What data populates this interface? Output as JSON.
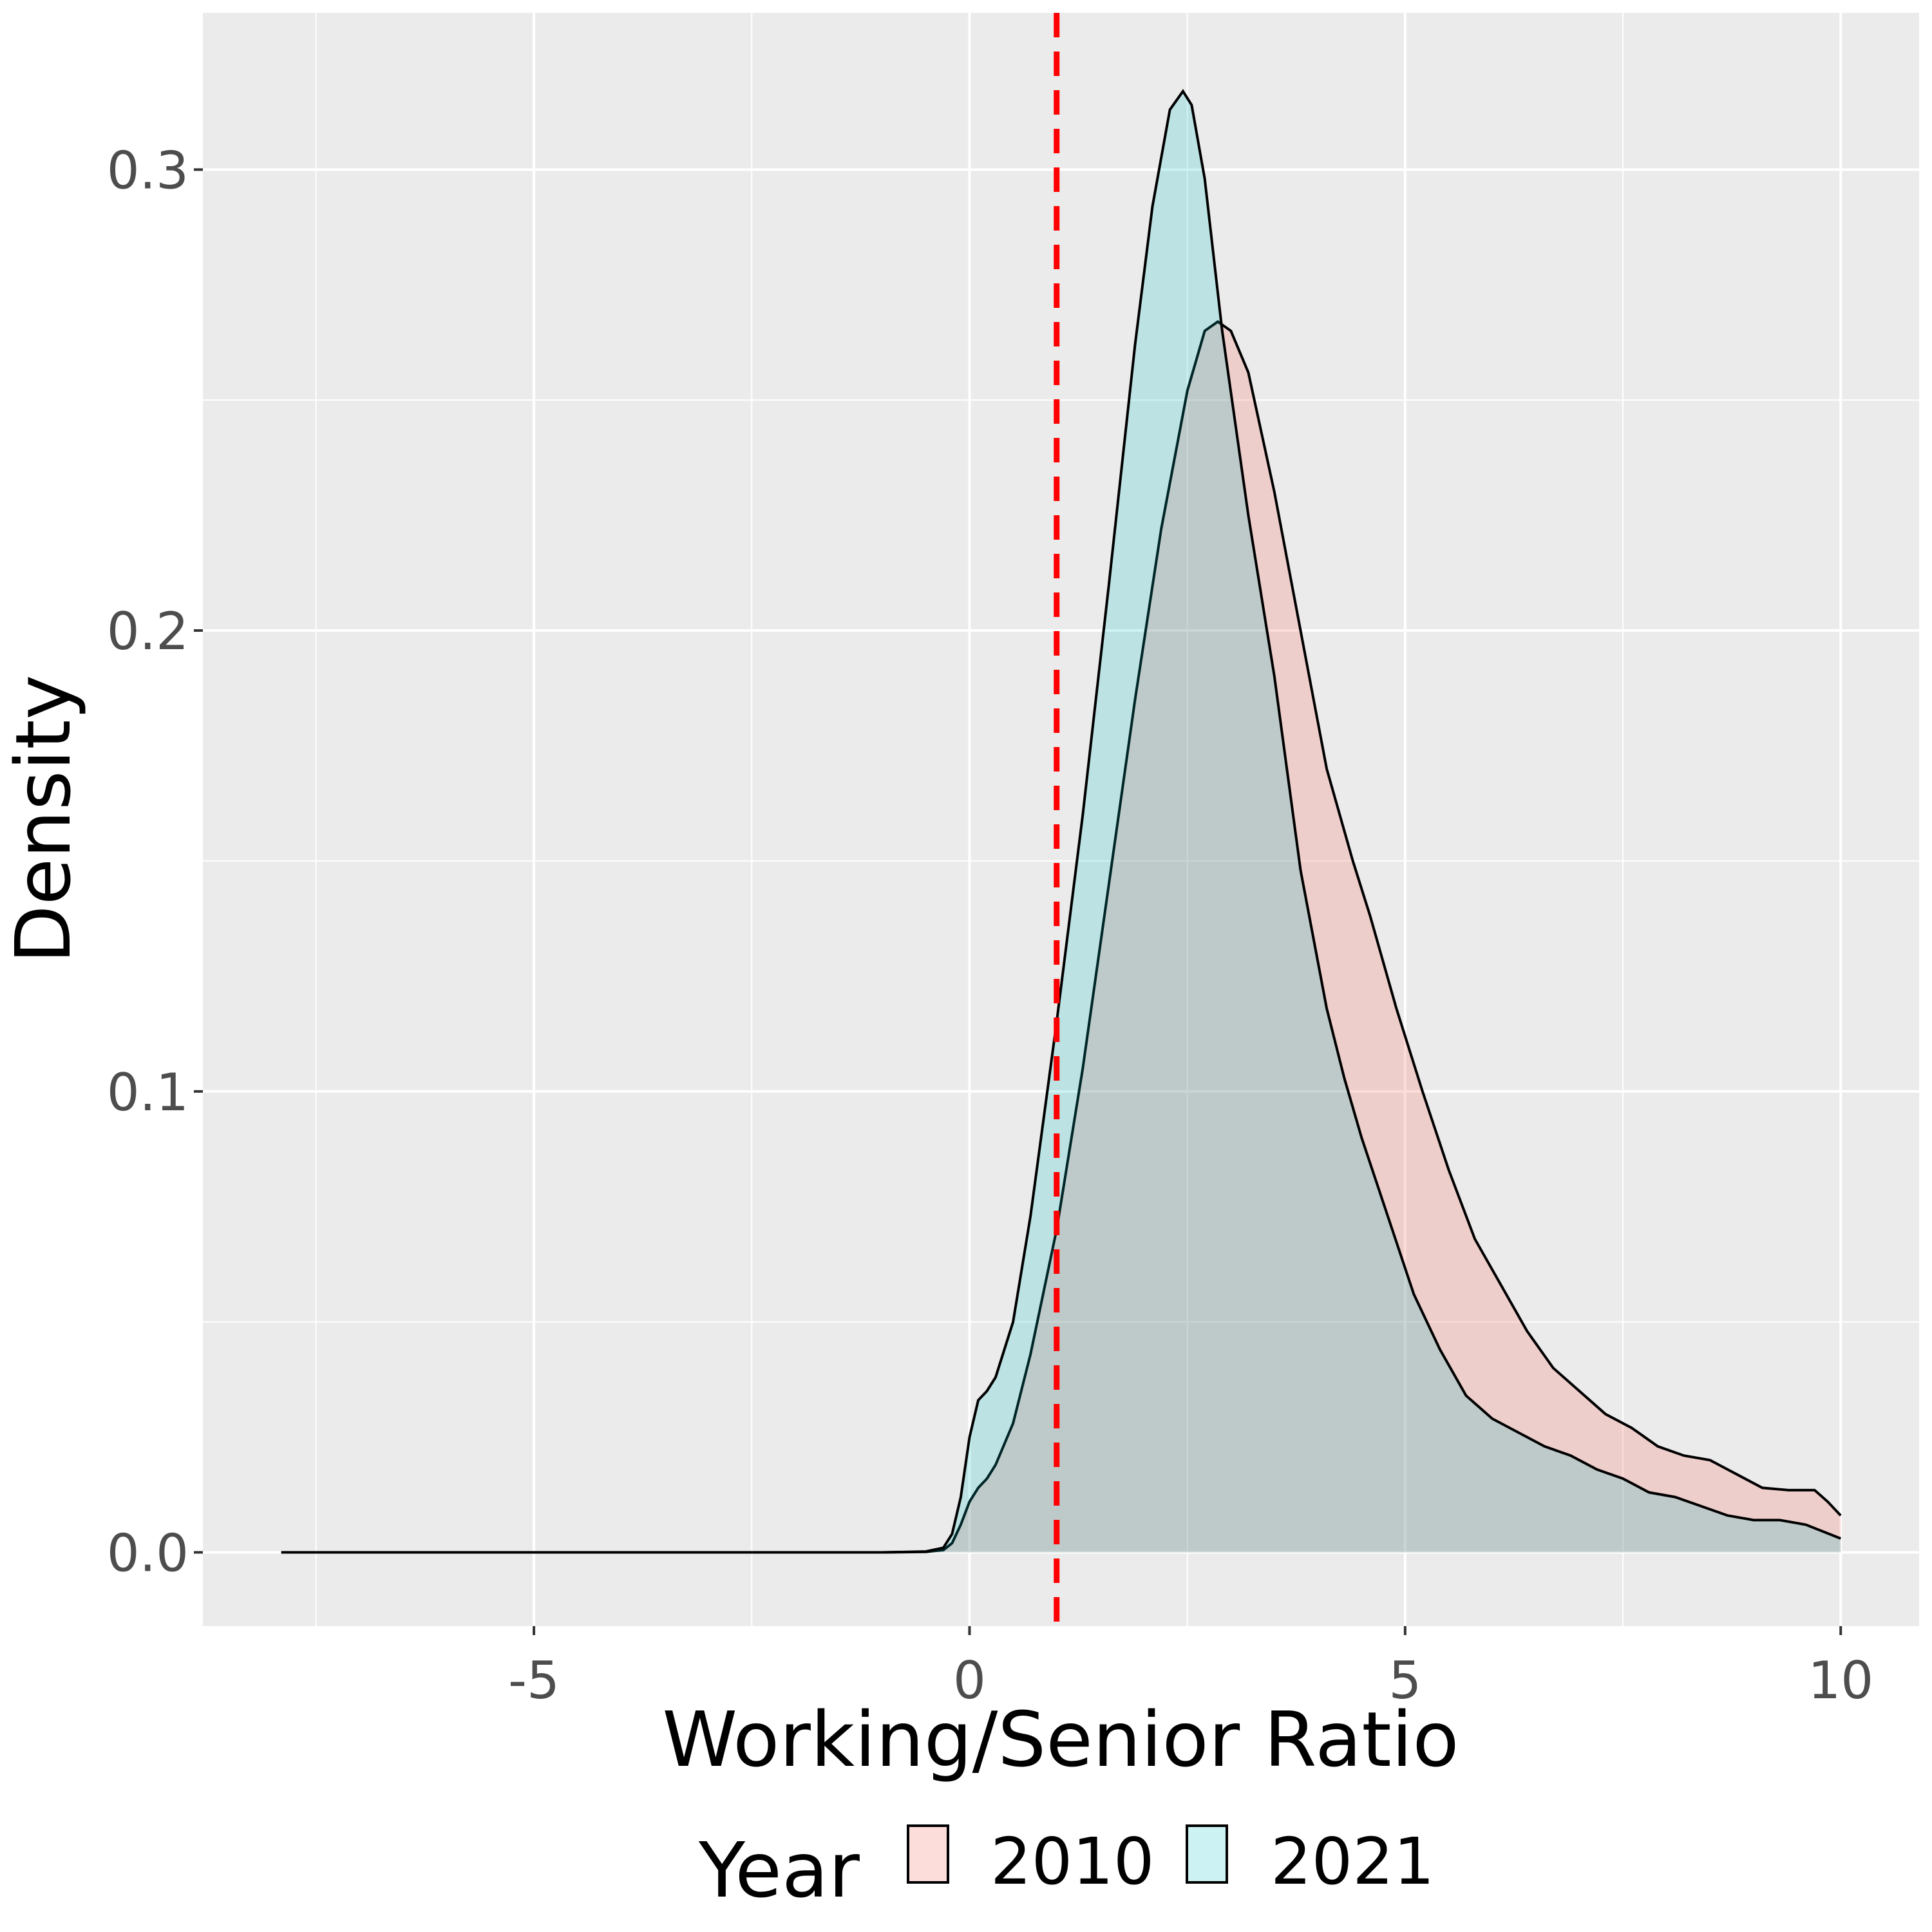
{
  "chart_data": {
    "type": "area",
    "subtype": "density",
    "xlabel": "Working/Senior Ratio",
    "ylabel": "Density",
    "xlim": [
      -8.8,
      10.9
    ],
    "ylim": [
      -0.016,
      0.334
    ],
    "x_ticks": [
      -5,
      0,
      5,
      10
    ],
    "x_tick_labels": [
      "-5",
      "0",
      "5",
      "10"
    ],
    "y_ticks": [
      0.0,
      0.1,
      0.2,
      0.3
    ],
    "y_tick_labels": [
      "0.0",
      "0.1",
      "0.2",
      "0.3"
    ],
    "grid": true,
    "panel_background": "#ebebeb",
    "legend": {
      "title": "Year",
      "position": "bottom",
      "entries": [
        "2010",
        "2021"
      ]
    },
    "reference_line": {
      "axis": "x",
      "value": 1.0,
      "color": "#ff0000",
      "style": "dashed"
    },
    "series": [
      {
        "name": "2010",
        "fill": "#f8766d",
        "fill_opacity": 0.25,
        "x": [
          -7.9,
          -2.0,
          -1.0,
          -0.5,
          -0.3,
          -0.2,
          -0.1,
          0.0,
          0.1,
          0.2,
          0.3,
          0.5,
          0.7,
          1.0,
          1.3,
          1.6,
          1.9,
          2.2,
          2.5,
          2.7,
          2.85,
          3.0,
          3.2,
          3.5,
          3.8,
          4.1,
          4.4,
          4.6,
          4.9,
          5.2,
          5.5,
          5.8,
          6.1,
          6.4,
          6.7,
          7.0,
          7.3,
          7.6,
          7.9,
          8.2,
          8.5,
          8.8,
          9.1,
          9.4,
          9.7,
          9.85,
          10.0
        ],
        "values": [
          0.0,
          0.0,
          0.0,
          0.0001,
          0.0005,
          0.002,
          0.006,
          0.011,
          0.014,
          0.016,
          0.019,
          0.028,
          0.043,
          0.07,
          0.105,
          0.145,
          0.185,
          0.222,
          0.252,
          0.265,
          0.267,
          0.265,
          0.256,
          0.23,
          0.2,
          0.17,
          0.15,
          0.138,
          0.118,
          0.1,
          0.083,
          0.068,
          0.058,
          0.048,
          0.04,
          0.035,
          0.03,
          0.027,
          0.023,
          0.021,
          0.02,
          0.017,
          0.014,
          0.0135,
          0.0135,
          0.011,
          0.008
        ]
      },
      {
        "name": "2021",
        "fill": "#00bfc4",
        "fill_opacity": 0.2,
        "x": [
          -7.9,
          -2.0,
          -1.0,
          -0.5,
          -0.3,
          -0.2,
          -0.1,
          0.0,
          0.1,
          0.2,
          0.3,
          0.5,
          0.7,
          1.0,
          1.3,
          1.6,
          1.9,
          2.1,
          2.3,
          2.45,
          2.55,
          2.7,
          2.9,
          3.2,
          3.5,
          3.8,
          4.1,
          4.3,
          4.5,
          4.8,
          5.1,
          5.4,
          5.7,
          6.0,
          6.3,
          6.6,
          6.9,
          7.2,
          7.5,
          7.8,
          8.1,
          8.4,
          8.7,
          9.0,
          9.3,
          9.6,
          10.0
        ],
        "values": [
          0.0,
          0.0,
          0.0,
          0.0002,
          0.001,
          0.004,
          0.012,
          0.025,
          0.033,
          0.035,
          0.038,
          0.05,
          0.073,
          0.115,
          0.16,
          0.21,
          0.262,
          0.292,
          0.313,
          0.317,
          0.314,
          0.298,
          0.265,
          0.225,
          0.19,
          0.148,
          0.118,
          0.103,
          0.09,
          0.073,
          0.056,
          0.044,
          0.034,
          0.029,
          0.026,
          0.023,
          0.021,
          0.018,
          0.016,
          0.013,
          0.012,
          0.01,
          0.008,
          0.007,
          0.007,
          0.006,
          0.003
        ]
      }
    ]
  }
}
